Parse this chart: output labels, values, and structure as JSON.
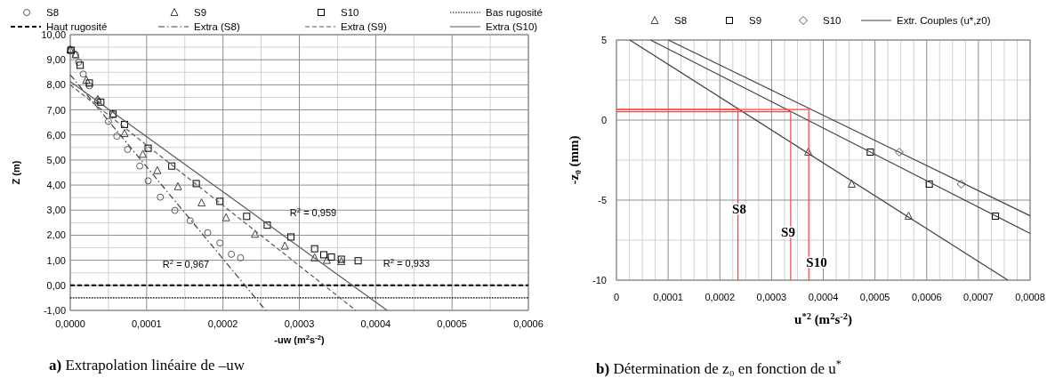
{
  "chart_data": [
    {
      "type": "scatter",
      "title": "a) Extrapolation linéaire de –uw",
      "xlabel": "-uw (m$^{2}$s$^{-2}$)",
      "ylabel": "Z (m)",
      "xlim": [
        0,
        0.0006
      ],
      "xticks": [
        {
          "value": 0,
          "label": "0,0000"
        },
        {
          "value": 0.0001,
          "label": "0,0001"
        },
        {
          "value": 0.0002,
          "label": "0,0002"
        },
        {
          "value": 0.0003,
          "label": "0,0003"
        },
        {
          "value": 0.0004,
          "label": "0,0004"
        },
        {
          "value": 0.0005,
          "label": "0,0005"
        },
        {
          "value": 0.0006,
          "label": "0,0006"
        }
      ],
      "ylim": [
        -1,
        10
      ],
      "yticks": [
        {
          "value": -1,
          "label": "-1,00"
        },
        {
          "value": 0,
          "label": "0,00"
        },
        {
          "value": 1,
          "label": "1,00"
        },
        {
          "value": 2,
          "label": "2,00"
        },
        {
          "value": 3,
          "label": "3,00"
        },
        {
          "value": 4,
          "label": "4,00"
        },
        {
          "value": 5,
          "label": "5,00"
        },
        {
          "value": 6,
          "label": "6,00"
        },
        {
          "value": 7,
          "label": "7,00"
        },
        {
          "value": 8,
          "label": "8,00"
        },
        {
          "value": 9,
          "label": "9,00"
        },
        {
          "value": 10,
          "label": "10,00"
        }
      ],
      "grid": true,
      "legend": "top",
      "series": [
        {
          "name": "S8",
          "type": "scatter",
          "marker": "circle",
          "color": "#595959",
          "x": [
            0,
            7e-06,
            1.1e-05,
            1.7e-05,
            2.5e-05,
            3.6e-05,
            5e-05,
            6.1e-05,
            7.5e-05,
            9.1e-05,
            0.000102,
            0.000118,
            0.000137,
            0.000157,
            0.00018,
            0.000196,
            0.000211,
            0.000223
          ],
          "values": [
            9.41,
            9.2,
            8.9,
            8.43,
            7.96,
            7.36,
            6.54,
            5.95,
            5.42,
            4.76,
            4.17,
            3.52,
            2.99,
            2.58,
            2.1,
            1.69,
            1.24,
            1.1
          ]
        },
        {
          "name": "S9",
          "type": "scatter",
          "marker": "triangle",
          "color": "#404040",
          "x": [
            0,
            7e-06,
            2.1e-05,
            3.6e-05,
            5.6e-05,
            7.1e-05,
            9.5e-05,
            0.000114,
            0.000141,
            0.000172,
            0.000204,
            0.000242,
            0.000281,
            0.00032,
            0.000336,
            0.000355
          ],
          "values": [
            9.4,
            9.2,
            8.19,
            7.42,
            6.83,
            6.06,
            5.23,
            4.58,
            3.94,
            3.29,
            2.7,
            2.04,
            1.57,
            1.1,
            1.0,
            0.95
          ]
        },
        {
          "name": "S10",
          "type": "scatter",
          "marker": "square",
          "color": "#000000",
          "x": [
            1e-06,
            1.3e-05,
            2.5e-05,
            4e-05,
            5.6e-05,
            7.1e-05,
            0.000102,
            0.000133,
            0.000165,
            0.000196,
            0.000231,
            0.000258,
            0.000289,
            0.00032,
            0.000332,
            0.000342,
            0.000355,
            0.000377
          ],
          "values": [
            9.38,
            8.78,
            8.07,
            7.31,
            6.83,
            6.42,
            5.47,
            4.76,
            4.06,
            3.35,
            2.75,
            2.4,
            1.93,
            1.46,
            1.22,
            1.13,
            1.04,
            0.98
          ]
        },
        {
          "name": "Bas rugosité",
          "type": "line",
          "line_style": "dotted",
          "color": "#000000",
          "x": [
            0,
            0.0006
          ],
          "values": [
            -0.5,
            -0.5
          ]
        },
        {
          "name": "Haut rugosité",
          "type": "line",
          "line_style": "dashed",
          "color": "#000000",
          "x": [
            0,
            0.0006
          ],
          "values": [
            0,
            0
          ]
        },
        {
          "name": "Extra (S8)",
          "type": "line",
          "line_style": "dashdot",
          "color": "#404040",
          "x": [
            0,
            0.000256
          ],
          "values": [
            8.4,
            -1
          ]
        },
        {
          "name": "Extra (S9)",
          "type": "line",
          "line_style": "dashed",
          "color": "#595959",
          "x": [
            0,
            0.000374
          ],
          "values": [
            8.0,
            -1
          ]
        },
        {
          "name": "Extra (S10)",
          "type": "line",
          "line_style": "solid",
          "color": "#595959",
          "x": [
            0,
            0.000415
          ],
          "values": [
            8.13,
            -1
          ]
        }
      ],
      "annotations": [
        "R$^{2}$ = 0,967",
        "R$^{2}$ = 0,959",
        "R$^{2}$ = 0,933"
      ]
    },
    {
      "type": "scatter",
      "title": "b) Détermination de z₀ en fonction de u$^{*}$",
      "xlabel": "u$^{*2}$ (m$^{2}$s$^{-2}$)",
      "ylabel": "-z₀ (mm)",
      "xlim": [
        0,
        0.0008
      ],
      "xticks": [
        0,
        {
          "value": 0.0001,
          "label": "0,0001"
        },
        {
          "value": 0.0002,
          "label": "0,0002"
        },
        {
          "value": 0.0003,
          "label": "0,0003"
        },
        {
          "value": 0.0004,
          "label": "0,0004"
        },
        {
          "value": 0.0005,
          "label": "0,0005"
        },
        {
          "value": 0.0006,
          "label": "0,0006"
        },
        {
          "value": 0.0007,
          "label": "0,0007"
        },
        {
          "value": 0.0008,
          "label": "0,0008"
        }
      ],
      "ylim": [
        -10,
        5
      ],
      "yticks": [
        -10,
        -5,
        0,
        5
      ],
      "grid": true,
      "legend": "top",
      "series": [
        {
          "name": "S8",
          "type": "scatter",
          "marker": "triangle",
          "color": "#404040",
          "x": [
            0.000371,
            0.000455,
            0.000565
          ],
          "values": [
            -2,
            -4,
            -6
          ]
        },
        {
          "name": "S9",
          "type": "scatter",
          "marker": "square",
          "color": "#000000",
          "x": [
            0.000491,
            0.000605,
            0.000733
          ],
          "values": [
            -2,
            -4,
            -6
          ]
        },
        {
          "name": "S10",
          "type": "scatter",
          "marker": "diamond",
          "color": "#595959",
          "x": [
            0.000547,
            0.000667
          ],
          "values": [
            -2,
            -4
          ]
        },
        {
          "name": "Extr. Couples (u*,z0)",
          "type": "line",
          "line_style": "solid",
          "color": "#404040",
          "x": [
            2.58e-05,
            0.000757
          ],
          "values": [
            5,
            -10
          ]
        },
        {
          "type": "line",
          "line_style": "solid",
          "color": "#404040",
          "x": [
            6.59e-05,
            0.0008
          ],
          "values": [
            5,
            -7.08
          ]
        },
        {
          "type": "line",
          "line_style": "solid",
          "color": "#404040",
          "x": [
            0.0001003,
            0.0008
          ],
          "values": [
            5,
            -5.98
          ]
        },
        {
          "type": "line",
          "line_style": "solid",
          "color": "#ff4040",
          "x": [
            0,
            0.000235,
            0.000235
          ],
          "values": [
            0.66,
            0.66,
            -10
          ]
        },
        {
          "type": "line",
          "line_style": "solid",
          "color": "#ff4040",
          "x": [
            0,
            0.000337,
            0.000337
          ],
          "values": [
            0.52,
            0.52,
            -10
          ]
        },
        {
          "type": "line",
          "line_style": "solid",
          "color": "#ff4040",
          "x": [
            0,
            0.000372,
            0.000372
          ],
          "values": [
            0.66,
            0.66,
            -10
          ]
        }
      ],
      "annotations": [
        "S8",
        "S9",
        "S10"
      ]
    }
  ]
}
